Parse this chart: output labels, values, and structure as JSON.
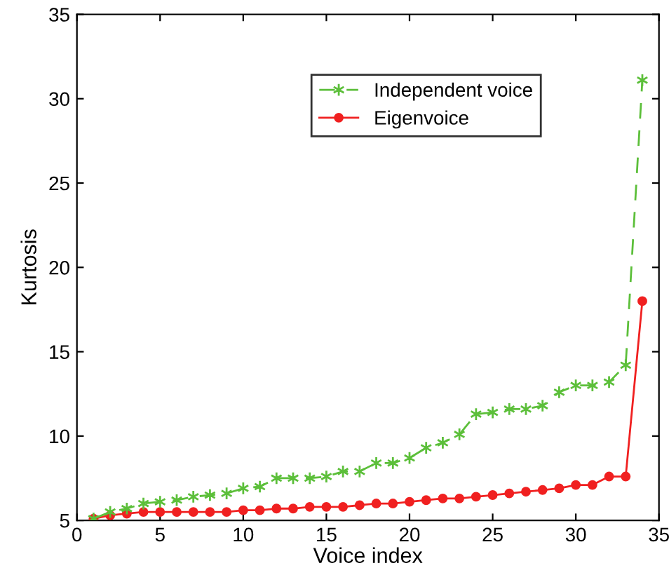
{
  "chart_data": {
    "type": "line",
    "xlabel": "Voice index",
    "ylabel": "Kurtosis",
    "x": [
      1,
      2,
      3,
      4,
      5,
      6,
      7,
      8,
      9,
      10,
      11,
      12,
      13,
      14,
      15,
      16,
      17,
      18,
      19,
      20,
      21,
      22,
      23,
      24,
      25,
      26,
      27,
      28,
      29,
      30,
      31,
      32,
      33,
      34
    ],
    "series": [
      {
        "name": "Independent voice",
        "color": "#5cbf3a",
        "marker": "cross",
        "line_style": "dashed",
        "values": [
          5.1,
          5.5,
          5.7,
          6.0,
          6.1,
          6.2,
          6.4,
          6.5,
          6.6,
          6.9,
          7.0,
          7.5,
          7.5,
          7.5,
          7.6,
          7.9,
          7.9,
          8.4,
          8.4,
          8.7,
          9.3,
          9.6,
          10.1,
          11.3,
          11.4,
          11.6,
          11.6,
          11.8,
          12.6,
          13.0,
          13.0,
          13.2,
          14.2,
          31.1
        ]
      },
      {
        "name": "Eigenvoice",
        "color": "#f02020",
        "marker": "circle",
        "line_style": "solid",
        "values": [
          5.1,
          5.3,
          5.4,
          5.5,
          5.5,
          5.5,
          5.5,
          5.5,
          5.5,
          5.6,
          5.6,
          5.7,
          5.7,
          5.8,
          5.8,
          5.8,
          5.9,
          6.0,
          6.0,
          6.1,
          6.2,
          6.3,
          6.3,
          6.4,
          6.5,
          6.6,
          6.7,
          6.8,
          6.9,
          7.1,
          7.1,
          7.6,
          7.6,
          18.0
        ]
      }
    ],
    "xlim": [
      0,
      35
    ],
    "ylim": [
      5,
      35
    ],
    "xticks": [
      0,
      5,
      10,
      15,
      20,
      25,
      30,
      35
    ],
    "yticks": [
      5,
      10,
      15,
      20,
      25,
      30,
      35
    ],
    "grid": false,
    "legend": "top"
  }
}
